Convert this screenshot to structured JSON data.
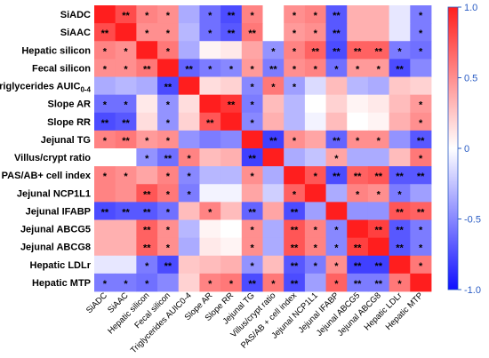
{
  "chart_data": {
    "type": "heatmap",
    "rows": [
      "SiADC",
      "SiAAC",
      "Hepatic silicon",
      "Fecal silicon",
      "Triglycerides AUIC0-4",
      "Slope AR",
      "Slope RR",
      "Jejunal TG",
      "Villus/crypt ratio",
      "PAS/AB+ cell index",
      "Jejunal NCP1L1",
      "Jejunal IFABP",
      "Jejunal ABCG5",
      "Jejunal ABCG8",
      "Hepatic LDLr",
      "Hepatic MTP"
    ],
    "row_label_special": {
      "base": "Triglycerides AUIC",
      "subscript": "0-4"
    },
    "columns": [
      "SiADC",
      "SiAAC",
      "Hepatic silicon",
      "Fecal silicon",
      "Triglycerides AUIC0-4",
      "Slope AR",
      "Slope RR",
      "Jejunal TG",
      "Villus/crypt ratio",
      "PAS/AB + cell index",
      "Jejunal NCP1L1",
      "Jejunal IFABP",
      "Jejunal ABCG5",
      "Jejunal ABCG8",
      "Hepatic LDLr",
      "Hepatic MTP"
    ],
    "values": [
      [
        1.0,
        0.8,
        0.55,
        0.5,
        -0.35,
        -0.6,
        -0.75,
        0.55,
        0.0,
        0.5,
        0.55,
        -0.7,
        0.35,
        0.35,
        -0.1,
        -0.55
      ],
      [
        0.8,
        1.0,
        0.5,
        0.5,
        -0.3,
        -0.6,
        -0.7,
        0.6,
        0.0,
        0.45,
        0.5,
        -0.7,
        0.35,
        0.35,
        -0.1,
        -0.55
      ],
      [
        0.55,
        0.5,
        1.0,
        0.6,
        -0.35,
        0.05,
        0.1,
        0.4,
        -0.45,
        0.55,
        0.7,
        -0.75,
        0.7,
        0.7,
        -0.55,
        -0.6
      ],
      [
        0.5,
        0.5,
        0.6,
        1.0,
        -0.65,
        -0.55,
        -0.5,
        0.45,
        -0.55,
        0.5,
        0.55,
        -0.6,
        0.45,
        0.45,
        -0.75,
        -0.5
      ],
      [
        -0.35,
        -0.3,
        -0.35,
        -0.75,
        1.0,
        0.15,
        0.2,
        -0.5,
        0.6,
        -0.4,
        -0.15,
        0.3,
        -0.3,
        -0.35,
        0.25,
        0.2
      ],
      [
        -0.6,
        -0.6,
        0.1,
        -0.45,
        0.15,
        1.0,
        0.9,
        -0.55,
        0.3,
        -0.3,
        0.0,
        0.2,
        0.05,
        0.1,
        0.3,
        0.45
      ],
      [
        -0.75,
        -0.7,
        0.15,
        -0.45,
        0.2,
        0.75,
        1.0,
        -0.5,
        0.35,
        -0.3,
        -0.05,
        0.3,
        0.0,
        0.05,
        0.35,
        0.5
      ],
      [
        0.55,
        0.6,
        0.45,
        0.5,
        -0.45,
        -0.55,
        -0.5,
        1.0,
        -0.8,
        0.5,
        0.4,
        -0.65,
        0.5,
        0.5,
        -0.45,
        -0.7
      ],
      [
        0.0,
        0.0,
        -0.45,
        -0.6,
        0.55,
        0.3,
        0.35,
        -0.8,
        1.0,
        -0.35,
        -0.25,
        0.4,
        -0.35,
        -0.35,
        0.3,
        0.6
      ],
      [
        0.55,
        0.5,
        0.4,
        0.55,
        -0.5,
        -0.3,
        -0.3,
        0.5,
        -0.35,
        1.0,
        0.75,
        -0.75,
        0.7,
        0.75,
        -0.7,
        -0.7
      ],
      [
        0.55,
        0.5,
        0.75,
        0.6,
        -0.55,
        -0.05,
        -0.05,
        0.4,
        -0.2,
        0.7,
        1.0,
        -0.35,
        0.55,
        0.5,
        -0.55,
        -0.4
      ],
      [
        -0.75,
        -0.7,
        -0.7,
        -0.6,
        0.3,
        0.55,
        0.3,
        -0.65,
        0.4,
        -0.75,
        -0.4,
        1.0,
        -0.45,
        -0.45,
        0.75,
        0.7
      ],
      [
        0.35,
        0.35,
        0.7,
        0.5,
        -0.3,
        0.05,
        0.0,
        0.5,
        -0.35,
        0.75,
        0.55,
        -0.5,
        1.0,
        0.85,
        -0.7,
        -0.55
      ],
      [
        0.35,
        0.35,
        0.7,
        0.5,
        -0.35,
        0.1,
        0.05,
        0.5,
        -0.35,
        0.75,
        0.55,
        -0.5,
        0.85,
        1.0,
        -0.7,
        -0.55
      ],
      [
        -0.1,
        -0.1,
        -0.55,
        -0.75,
        0.25,
        0.3,
        0.35,
        -0.45,
        0.3,
        -0.7,
        -0.55,
        0.5,
        -0.8,
        -0.8,
        1.0,
        0.6
      ],
      [
        -0.55,
        -0.55,
        -0.6,
        -0.5,
        0.2,
        0.55,
        0.6,
        -0.75,
        0.6,
        -0.75,
        -0.4,
        0.7,
        -0.55,
        -0.55,
        0.6,
        1.0
      ]
    ],
    "significance": [
      [
        "",
        "**",
        "*",
        "*",
        "",
        "*",
        "**",
        "*",
        "",
        "*",
        "*",
        "**",
        "",
        "",
        "",
        "*"
      ],
      [
        "**",
        "",
        "*",
        "*",
        "",
        "*",
        "**",
        "**",
        "",
        "*",
        "*",
        "**",
        "",
        "",
        "",
        "*"
      ],
      [
        "*",
        "*",
        "",
        "*",
        "",
        "",
        "",
        "",
        "*",
        "*",
        "**",
        "**",
        "**",
        "**",
        "*",
        "*"
      ],
      [
        "*",
        "*",
        "**",
        "",
        "**",
        "*",
        "*",
        "*",
        "**",
        "*",
        "*",
        "*",
        "*",
        "*",
        "**",
        ""
      ],
      [
        "",
        "",
        "",
        "**",
        "",
        "",
        "",
        "*",
        "*",
        "*",
        "",
        "",
        "",
        "",
        "",
        ""
      ],
      [
        "*",
        "*",
        "",
        "*",
        "",
        "",
        "**",
        "*",
        "",
        "",
        "",
        "",
        "",
        "",
        "",
        "*"
      ],
      [
        "**",
        "**",
        "",
        "*",
        "",
        "**",
        "",
        "*",
        "",
        "",
        "",
        "",
        "",
        "",
        "",
        "*"
      ],
      [
        "*",
        "**",
        "*",
        "*",
        "",
        "",
        "",
        "",
        "**",
        "*",
        "",
        "**",
        "*",
        "*",
        "",
        "**"
      ],
      [
        "",
        "",
        "*",
        "**",
        "*",
        "",
        "",
        "**",
        "",
        "",
        "",
        "*",
        "",
        "",
        "",
        "*"
      ],
      [
        "*",
        "*",
        "",
        "*",
        "*",
        "",
        "",
        "*",
        "",
        "",
        "*",
        "**",
        "**",
        "**",
        "**",
        "**"
      ],
      [
        "",
        "",
        "**",
        "*",
        "*",
        "",
        "",
        "",
        "",
        "*",
        "",
        "",
        "*",
        "*",
        "*",
        ""
      ],
      [
        "**",
        "**",
        "**",
        "*",
        "",
        "*",
        "",
        "**",
        "",
        "**",
        "",
        "",
        "",
        "",
        "**",
        "**"
      ],
      [
        "",
        "",
        "**",
        "*",
        "",
        "",
        "",
        "*",
        "",
        "**",
        "*",
        "*",
        "",
        "**",
        "**",
        "*"
      ],
      [
        "",
        "",
        "**",
        "*",
        "",
        "",
        "",
        "*",
        "",
        "**",
        "*",
        "*",
        "**",
        "",
        "**",
        "*"
      ],
      [
        "",
        "",
        "*",
        "**",
        "",
        "",
        "",
        "*",
        "",
        "**",
        "*",
        "*",
        "**",
        "**",
        "",
        "*"
      ],
      [
        "*",
        "*",
        "*",
        "",
        "",
        "*",
        "*",
        "**",
        "*",
        "**",
        "",
        "*",
        "**",
        "**",
        "*",
        ""
      ]
    ],
    "color_scale": {
      "min": -1.0,
      "max": 1.0,
      "low_color": "#1010ff",
      "mid_color": "#ffffff",
      "high_color": "#ff1e1e"
    },
    "colorbar_ticks": [
      "1.0",
      "0.5",
      "0",
      "-0.5",
      "-1.0"
    ],
    "colorbar_tick_values": [
      1.0,
      0.5,
      0,
      -0.5,
      -1.0
    ],
    "colorbar_tick_color": "#2a5cc4"
  }
}
